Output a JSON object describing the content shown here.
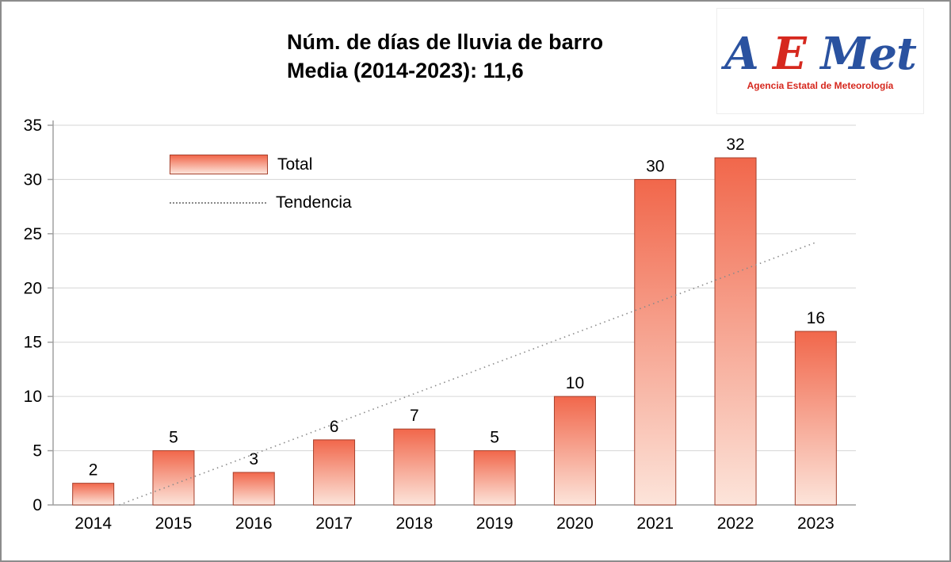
{
  "chart_data": {
    "type": "bar",
    "title": "Núm. de días de lluvia de barro",
    "subtitle": "Media (2014-2023): 11,6",
    "categories": [
      "2014",
      "2015",
      "2016",
      "2017",
      "2018",
      "2019",
      "2020",
      "2021",
      "2022",
      "2023"
    ],
    "series": [
      {
        "name": "Total",
        "values": [
          2,
          5,
          3,
          6,
          7,
          5,
          10,
          30,
          32,
          16
        ]
      }
    ],
    "trend": {
      "name": "Tendencia",
      "value_at_2014": -0.9,
      "value_at_2023": 24.2
    },
    "mean_2014_2023": 11.6,
    "xlabel": "",
    "ylabel": "",
    "ylim": [
      0,
      35
    ],
    "ytick_step": 5,
    "yticks": [
      0,
      5,
      10,
      15,
      20,
      25,
      30,
      35
    ],
    "grid": "horizontal",
    "legend_position": "inside-top-left",
    "colors": {
      "bar_gradient_top": "#f1674b",
      "bar_gradient_bottom": "#fce4da",
      "bar_border": "#a6412d",
      "trend_line": "#8a8a8a",
      "grid_line": "#d6d6d6",
      "axis_line": "#a0a0a0",
      "text": "#000000"
    }
  },
  "logo": {
    "word": [
      {
        "text": "A",
        "color": "#2a52a0"
      },
      {
        "text": "E",
        "color": "#d6281e"
      },
      {
        "text": "Met",
        "color": "#2a52a0"
      }
    ],
    "subtitle": "Agencia Estatal de Meteorología",
    "subtitle_color": "#d6281e"
  }
}
